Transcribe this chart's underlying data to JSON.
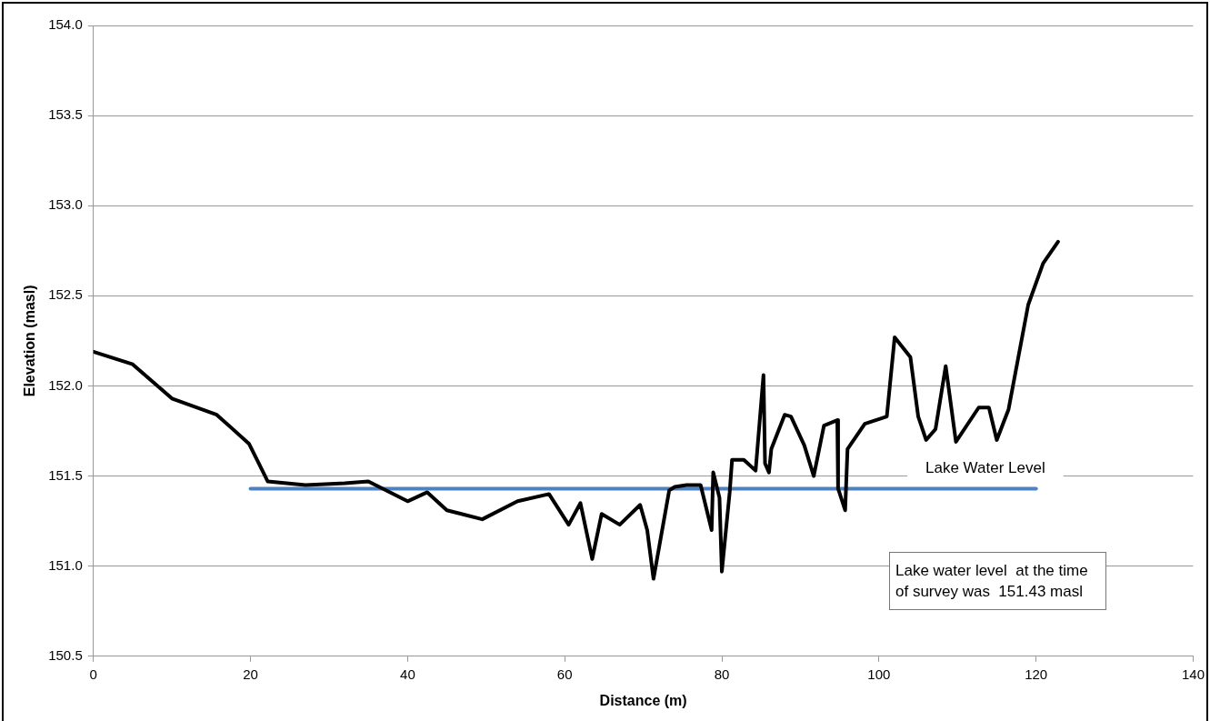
{
  "chart_data": {
    "type": "line",
    "xlabel": "Distance (m)",
    "ylabel": "Elevation (masl)",
    "xlim": [
      0,
      140
    ],
    "xticks": [
      0,
      20,
      40,
      60,
      80,
      100,
      120,
      140
    ],
    "ylim": [
      150.5,
      154.0
    ],
    "yticks": [
      {
        "value": 150.5,
        "label": "150.5"
      },
      {
        "value": 151,
        "label": "151.0"
      },
      {
        "value": 151.5,
        "label": "151.5"
      },
      {
        "value": 152,
        "label": "152.0"
      },
      {
        "value": 152.5,
        "label": "152.5"
      },
      {
        "value": 153,
        "label": "153.0"
      },
      {
        "value": 153.5,
        "label": "153.5"
      },
      {
        "value": 154,
        "label": "154.0"
      }
    ],
    "grid": "y",
    "marker": "none",
    "line_style": "solid",
    "legend": false,
    "series": [
      {
        "color": "#000000",
        "x": [
          0,
          5,
          10,
          15.7,
          19.8,
          22.2,
          27,
          32,
          35,
          40,
          42.5,
          45,
          49.5,
          54,
          58,
          60.5,
          62,
          63.5,
          64.7,
          67,
          69.6,
          70.5,
          71.3,
          73.3,
          74,
          75.5,
          77.3,
          78.7,
          78.9,
          79.7,
          80,
          81,
          81.3,
          82.8,
          84.3,
          85.3,
          85.5,
          86,
          86.3,
          88,
          88.8,
          90.5,
          91.7,
          93,
          94.7,
          94.8,
          95.7,
          96,
          98.2,
          101,
          102,
          104,
          105,
          106,
          107.2,
          108.5,
          109.8,
          112.7,
          114,
          115,
          116.5,
          119,
          120.9,
          122.8
        ],
        "values": [
          152.19,
          152.12,
          151.93,
          151.84,
          151.68,
          151.47,
          151.45,
          151.46,
          151.47,
          151.36,
          151.41,
          151.31,
          151.26,
          151.36,
          151.4,
          151.23,
          151.35,
          151.04,
          151.29,
          151.23,
          151.34,
          151.2,
          150.93,
          151.42,
          151.44,
          151.45,
          151.45,
          151.2,
          151.52,
          151.38,
          150.97,
          151.41,
          151.59,
          151.59,
          151.53,
          152.06,
          151.57,
          151.52,
          151.65,
          151.84,
          151.83,
          151.67,
          151.5,
          151.78,
          151.81,
          151.43,
          151.31,
          151.65,
          151.79,
          151.83,
          152.27,
          152.16,
          151.83,
          151.7,
          151.76,
          152.11,
          151.69,
          151.88,
          151.88,
          151.7,
          151.87,
          152.45,
          152.68,
          152.8
        ]
      },
      {
        "name": "Lake Water Level",
        "color": "#4f81bd",
        "x": [
          20,
          120
        ],
        "values": [
          151.43,
          151.43
        ]
      }
    ],
    "annotations": [
      "Lake water level  at the time of survey was  151.43 masl"
    ]
  }
}
